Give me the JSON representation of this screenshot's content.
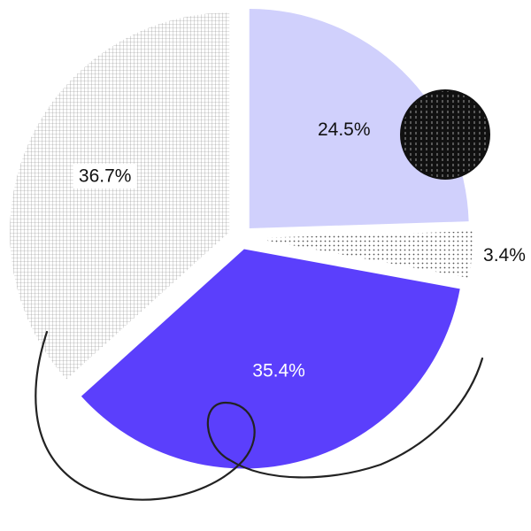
{
  "chart_data": {
    "type": "pie",
    "title": "",
    "slices": [
      {
        "label": "24.5%",
        "value": 24.5,
        "color": "#d0d0fc",
        "pattern": "solid"
      },
      {
        "label": "3.4%",
        "value": 3.4,
        "color": "#ffffff",
        "pattern": "dots"
      },
      {
        "label": "35.4%",
        "value": 35.4,
        "color": "#5b3ffc",
        "pattern": "solid"
      },
      {
        "label": "36.7%",
        "value": 36.7,
        "color": "#ffffff",
        "pattern": "grid"
      }
    ],
    "start_angle": "12 o'clock",
    "direction": "clockwise",
    "exploded": true,
    "legend": "none"
  },
  "decorations": {
    "accent_circle_color": "#111111",
    "swirl_color": "#222222"
  }
}
